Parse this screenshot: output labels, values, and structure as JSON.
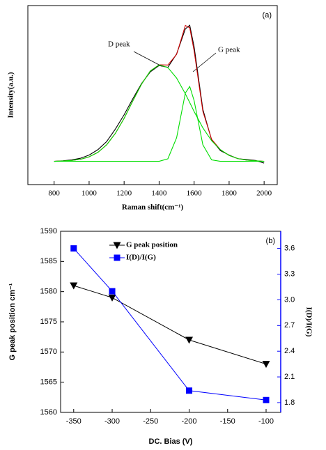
{
  "chart_data": [
    {
      "type": "line",
      "panel_label": "(a)",
      "xlabel": "Raman shift(cm⁻¹)",
      "ylabel": "Intensity(a.u.)",
      "annotations": [
        "D peak",
        "G peak"
      ],
      "xlim": [
        650,
        2075
      ],
      "xticks": [
        800,
        1000,
        1200,
        1400,
        1600,
        1800,
        2000
      ],
      "ylim": [
        0,
        1
      ],
      "x": [
        800,
        850,
        900,
        950,
        1000,
        1050,
        1100,
        1150,
        1200,
        1250,
        1300,
        1350,
        1400,
        1450,
        1500,
        1550,
        1575,
        1600,
        1650,
        1700,
        1750,
        1800,
        1850,
        1900,
        1950,
        2000
      ],
      "series": [
        {
          "color": "#000000",
          "values": [
            0.13,
            0.133,
            0.138,
            0.147,
            0.165,
            0.195,
            0.24,
            0.31,
            0.39,
            0.48,
            0.565,
            0.63,
            0.665,
            0.655,
            0.73,
            0.87,
            0.89,
            0.77,
            0.42,
            0.25,
            0.19,
            0.165,
            0.145,
            0.14,
            0.135,
            0.12
          ]
        },
        {
          "color": "#cc0000",
          "values": [
            0.13,
            0.132,
            0.135,
            0.141,
            0.155,
            0.18,
            0.222,
            0.286,
            0.37,
            0.468,
            0.562,
            0.635,
            0.669,
            0.668,
            0.727,
            0.889,
            0.876,
            0.747,
            0.409,
            0.253,
            0.195,
            0.163,
            0.145,
            0.137,
            0.133,
            0.13
          ]
        },
        {
          "color": "#00dd00",
          "values": [
            0.13,
            0.132,
            0.135,
            0.141,
            0.155,
            0.18,
            0.222,
            0.286,
            0.37,
            0.468,
            0.562,
            0.635,
            0.669,
            0.654,
            0.595,
            0.507,
            0.458,
            0.408,
            0.317,
            0.245,
            0.195,
            0.163,
            0.145,
            0.137,
            0.133,
            0.13
          ]
        },
        {
          "color": "#00dd00",
          "values": [
            0.13,
            0.13,
            0.13,
            0.13,
            0.13,
            0.13,
            0.13,
            0.13,
            0.13,
            0.13,
            0.13,
            0.13,
            0.13,
            0.144,
            0.262,
            0.512,
            0.548,
            0.469,
            0.222,
            0.138,
            0.13,
            0.13,
            0.13,
            0.13,
            0.13,
            0.13
          ]
        }
      ]
    },
    {
      "type": "line",
      "panel_label": "(b)",
      "xlabel": "DC. Bias (V)",
      "ylabel": "G peak position cm⁻¹",
      "y2label": "I(D)/I(G)",
      "xlim": [
        -367,
        -81
      ],
      "xticks": [
        -350,
        -300,
        -250,
        -200,
        -150,
        -100
      ],
      "ylim": [
        1560,
        1590
      ],
      "yticks": [
        1560,
        1565,
        1570,
        1575,
        1580,
        1585,
        1590
      ],
      "y2lim": [
        1.686,
        3.8
      ],
      "y2ticks": [
        1.8,
        2.1,
        2.4,
        2.7,
        {
          "value": 3,
          "label": "3.0"
        },
        3.3,
        3.6
      ],
      "legend": "upper left",
      "x": [
        -350,
        -300,
        -200,
        -100
      ],
      "series": [
        {
          "name": "G peak position",
          "color": "#000000",
          "marker": "triangle-down",
          "values": [
            1581,
            1579,
            1572,
            1568
          ]
        },
        {
          "name": "I(D)/I(G)",
          "color": "#0000ff",
          "marker": "square",
          "axis": "y2",
          "values": [
            3.6,
            3.1,
            1.94,
            1.83
          ]
        }
      ]
    }
  ]
}
